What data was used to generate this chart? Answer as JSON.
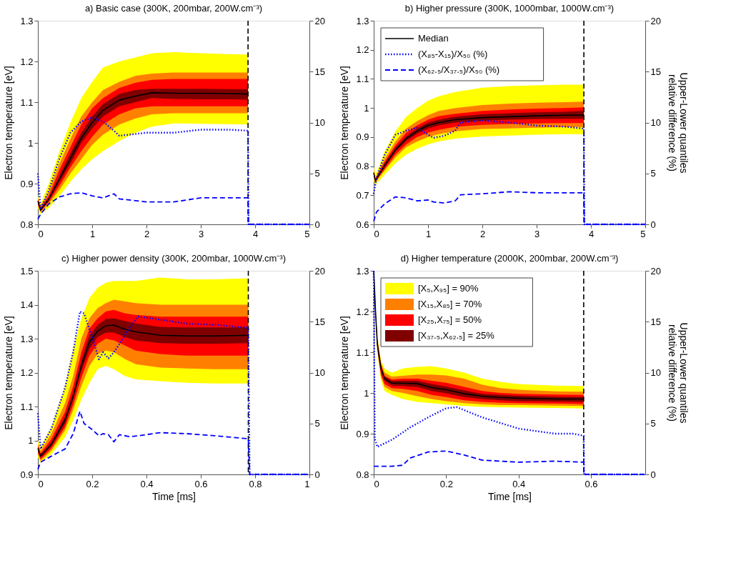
{
  "chart_data": [
    {
      "type": "line",
      "title": "a) Basic case (300K, 200mbar, 200W.cm⁻³)",
      "ylabel": "Electron temperature [eV]",
      "xlim": [
        0,
        5
      ],
      "xticks": [
        0,
        1,
        2,
        3,
        4,
        5
      ],
      "ylim": [
        0.8,
        1.3
      ],
      "yticks": [
        0.8,
        0.9,
        1,
        1.1,
        1.2,
        1.3
      ],
      "y2lim": [
        0,
        20
      ],
      "y2ticks": [
        0,
        5,
        10,
        15,
        20
      ],
      "grid": false,
      "legend": false,
      "marker": "none",
      "x": [
        0,
        0.05,
        0.2,
        0.4,
        0.6,
        0.8,
        1.0,
        1.2,
        1.5,
        1.8,
        2.1,
        2.5,
        3.0,
        3.5,
        3.87
      ],
      "series": [
        {
          "type": "area",
          "color": "#ffff00",
          "values": [
            null,
            null,
            null,
            null,
            null,
            null,
            null,
            null,
            null,
            null,
            null,
            null,
            null,
            null,
            null
          ],
          "lower": [
            0.84,
            0.825,
            0.84,
            0.87,
            0.905,
            0.935,
            0.96,
            0.98,
            1.005,
            1.025,
            1.04,
            1.048,
            1.047,
            1.046,
            1.045
          ],
          "upper": [
            0.87,
            0.85,
            0.9,
            0.98,
            1.05,
            1.11,
            1.15,
            1.185,
            1.2,
            1.21,
            1.22,
            1.223,
            1.22,
            1.218,
            1.217
          ]
        },
        {
          "type": "area",
          "color": "#ff8000",
          "values": [
            null,
            null,
            null,
            null,
            null,
            null,
            null,
            null,
            null,
            null,
            null,
            null,
            null,
            null,
            null
          ],
          "lower": [
            0.845,
            0.83,
            0.85,
            0.885,
            0.925,
            0.96,
            0.995,
            1.02,
            1.045,
            1.06,
            1.07,
            1.073,
            1.073,
            1.073,
            1.073
          ],
          "upper": [
            0.865,
            0.845,
            0.88,
            0.95,
            1.01,
            1.065,
            1.1,
            1.13,
            1.15,
            1.165,
            1.17,
            1.173,
            1.173,
            1.173,
            1.173
          ]
        },
        {
          "type": "area",
          "color": "#ff0000",
          "values": [
            null,
            null,
            null,
            null,
            null,
            null,
            null,
            null,
            null,
            null,
            null,
            null,
            null,
            null,
            null
          ],
          "lower": [
            0.85,
            0.832,
            0.855,
            0.895,
            0.94,
            0.98,
            1.015,
            1.045,
            1.07,
            1.085,
            1.09,
            1.09,
            1.09,
            1.09,
            1.09
          ],
          "upper": [
            0.862,
            0.84,
            0.87,
            0.935,
            0.99,
            1.045,
            1.085,
            1.11,
            1.135,
            1.148,
            1.155,
            1.157,
            1.157,
            1.157,
            1.157
          ]
        },
        {
          "type": "area",
          "color": "#800000",
          "values": [
            null,
            null,
            null,
            null,
            null,
            null,
            null,
            null,
            null,
            null,
            null,
            null,
            null,
            null,
            null
          ],
          "lower": [
            0.855,
            0.833,
            0.858,
            0.905,
            0.95,
            1.0,
            1.035,
            1.065,
            1.09,
            1.1,
            1.11,
            1.108,
            1.107,
            1.107,
            1.106
          ],
          "upper": [
            0.86,
            0.838,
            0.865,
            0.92,
            0.975,
            1.025,
            1.065,
            1.095,
            1.12,
            1.13,
            1.133,
            1.133,
            1.133,
            1.132,
            1.132
          ]
        },
        {
          "type": "line",
          "color": "#000000",
          "line_style": "solid",
          "values": [
            0.857,
            0.835,
            0.862,
            0.912,
            0.962,
            1.012,
            1.05,
            1.08,
            1.105,
            1.115,
            1.123,
            1.122,
            1.122,
            1.121,
            1.12
          ]
        },
        {
          "type": "line",
          "axis": "y2",
          "color": "#0000ff",
          "line_style": "dotted",
          "x": [
            0,
            0.05,
            0.2,
            0.4,
            0.6,
            0.8,
            1.0,
            1.2,
            1.4,
            1.5,
            2.0,
            2.5,
            3.0,
            3.5,
            3.87,
            3.88,
            5
          ],
          "values": [
            5,
            1.5,
            3.3,
            6.5,
            9.0,
            10.1,
            10.5,
            10.1,
            9.2,
            8.7,
            9.0,
            9.0,
            9.3,
            9.3,
            9.2,
            0,
            0
          ]
        },
        {
          "type": "line",
          "axis": "y2",
          "color": "#0000ff",
          "line_style": "dashed",
          "x": [
            0,
            0.05,
            0.2,
            0.4,
            0.6,
            0.8,
            1.0,
            1.2,
            1.4,
            1.5,
            2.0,
            2.5,
            3.0,
            3.5,
            3.87,
            3.88,
            5
          ],
          "values": [
            0.5,
            1.0,
            2.0,
            2.7,
            3.0,
            3.1,
            2.8,
            2.6,
            3.0,
            2.5,
            2.2,
            2.2,
            2.6,
            2.6,
            2.6,
            0,
            0
          ]
        }
      ],
      "ref_lines": [
        {
          "axis": "x",
          "value": 3.87,
          "color": "#000000",
          "line_style": "dashed"
        }
      ]
    },
    {
      "type": "line",
      "title": "b) Higher pressure (300K, 1000mbar, 1000W.cm⁻³)",
      "ylabel": "Electron temperature [eV]",
      "y2label": "Upper-Lower quantiles\nrelative difference (%)",
      "xlim": [
        0,
        5
      ],
      "xticks": [
        0,
        1,
        2,
        3,
        4,
        5
      ],
      "ylim": [
        0.6,
        1.3
      ],
      "yticks": [
        0.6,
        0.7,
        0.8,
        0.9,
        1,
        1.1,
        1.2,
        1.3
      ],
      "y2lim": [
        0,
        20
      ],
      "y2ticks": [
        0,
        5,
        10,
        15,
        20
      ],
      "grid": false,
      "legend": "top left",
      "marker": "none",
      "x": [
        0,
        0.03,
        0.1,
        0.2,
        0.4,
        0.6,
        0.8,
        1.0,
        1.2,
        1.5,
        2.0,
        2.5,
        3.0,
        3.5,
        3.87
      ],
      "series": [
        {
          "type": "area",
          "color": "#ffff00",
          "values": [
            null,
            null,
            null,
            null,
            null,
            null,
            null,
            null,
            null,
            null,
            null,
            null,
            null,
            null,
            null
          ],
          "lower": [
            0.75,
            0.735,
            0.75,
            0.77,
            0.81,
            0.84,
            0.86,
            0.875,
            0.885,
            0.895,
            0.902,
            0.905,
            0.908,
            0.91,
            0.91
          ],
          "upper": [
            0.8,
            0.77,
            0.8,
            0.85,
            0.92,
            0.97,
            1.0,
            1.025,
            1.04,
            1.055,
            1.07,
            1.075,
            1.078,
            1.08,
            1.08
          ]
        },
        {
          "type": "area",
          "color": "#ff8000",
          "values": [
            null,
            null,
            null,
            null,
            null,
            null,
            null,
            null,
            null,
            null,
            null,
            null,
            null,
            null,
            null
          ],
          "lower": [
            0.76,
            0.74,
            0.76,
            0.785,
            0.83,
            0.865,
            0.885,
            0.9,
            0.91,
            0.92,
            0.928,
            0.93,
            0.932,
            0.934,
            0.934
          ],
          "upper": [
            0.79,
            0.76,
            0.785,
            0.825,
            0.885,
            0.93,
            0.955,
            0.975,
            0.99,
            1.0,
            1.01,
            1.015,
            1.018,
            1.02,
            1.022
          ]
        },
        {
          "type": "area",
          "color": "#ff0000",
          "values": [
            null,
            null,
            null,
            null,
            null,
            null,
            null,
            null,
            null,
            null,
            null,
            null,
            null,
            null,
            null
          ],
          "lower": [
            0.765,
            0.745,
            0.765,
            0.79,
            0.84,
            0.875,
            0.9,
            0.915,
            0.925,
            0.935,
            0.942,
            0.945,
            0.947,
            0.948,
            0.948
          ],
          "upper": [
            0.785,
            0.755,
            0.78,
            0.815,
            0.872,
            0.915,
            0.94,
            0.96,
            0.972,
            0.98,
            0.99,
            0.995,
            0.998,
            1.0,
            1.002
          ]
        },
        {
          "type": "area",
          "color": "#800000",
          "values": [
            null,
            null,
            null,
            null,
            null,
            null,
            null,
            null,
            null,
            null,
            null,
            null,
            null,
            null,
            null
          ],
          "lower": [
            0.772,
            0.748,
            0.768,
            0.797,
            0.85,
            0.887,
            0.912,
            0.93,
            0.94,
            0.95,
            0.957,
            0.96,
            0.962,
            0.963,
            0.963
          ],
          "upper": [
            0.782,
            0.752,
            0.775,
            0.808,
            0.863,
            0.903,
            0.93,
            0.95,
            0.96,
            0.97,
            0.978,
            0.982,
            0.985,
            0.987,
            0.99
          ]
        },
        {
          "type": "line",
          "name": "Median",
          "color": "#000000",
          "line_style": "solid",
          "values": [
            0.777,
            0.75,
            0.771,
            0.802,
            0.856,
            0.895,
            0.921,
            0.94,
            0.95,
            0.96,
            0.967,
            0.97,
            0.973,
            0.975,
            0.976
          ]
        },
        {
          "type": "line",
          "axis": "y2",
          "name": "(X₈₅-X₁₅)/X₅₀ (%)",
          "color": "#0000ff",
          "line_style": "dotted",
          "x": [
            0,
            0.05,
            0.2,
            0.4,
            0.6,
            0.8,
            1.0,
            1.1,
            1.3,
            1.5,
            1.6,
            2.0,
            2.5,
            3.0,
            3.5,
            3.87,
            3.88,
            5
          ],
          "values": [
            3,
            4.5,
            6.8,
            8.8,
            9.2,
            9.5,
            8.8,
            8.5,
            8.7,
            9.2,
            10.0,
            10.2,
            10.0,
            9.7,
            9.6,
            9.4,
            0,
            0
          ]
        },
        {
          "type": "line",
          "axis": "y2",
          "name": "(X₆₂.₅/X₃₇.₅)/X₅₀ (%)",
          "color": "#0000ff",
          "line_style": "dashed",
          "x": [
            0,
            0.05,
            0.2,
            0.4,
            0.6,
            0.8,
            1.0,
            1.1,
            1.3,
            1.5,
            1.6,
            2.0,
            2.5,
            3.0,
            3.5,
            3.87,
            3.88,
            5
          ],
          "values": [
            0.3,
            1.2,
            2.0,
            2.7,
            2.6,
            2.3,
            2.4,
            2.2,
            2.1,
            2.3,
            2.9,
            3.0,
            3.2,
            3.1,
            3.1,
            3.1,
            0,
            0
          ]
        }
      ],
      "ref_lines": [
        {
          "axis": "x",
          "value": 3.87,
          "color": "#000000",
          "line_style": "dashed"
        }
      ]
    },
    {
      "type": "line",
      "title": "c) Higher power density (300K, 200mbar, 1000W.cm⁻³)",
      "xlabel": "Time [ms]",
      "ylabel": "Electron temperature [eV]",
      "xlim": [
        0,
        1
      ],
      "xticks": [
        0,
        0.2,
        0.4,
        0.6,
        0.8,
        1
      ],
      "ylim": [
        0.9,
        1.5
      ],
      "yticks": [
        0.9,
        1,
        1.1,
        1.2,
        1.3,
        1.4,
        1.5
      ],
      "y2lim": [
        0,
        20
      ],
      "y2ticks": [
        0,
        5,
        10,
        15,
        20
      ],
      "grid": false,
      "legend": false,
      "marker": "none",
      "x": [
        0,
        0.01,
        0.05,
        0.1,
        0.13,
        0.16,
        0.19,
        0.22,
        0.25,
        0.28,
        0.32,
        0.36,
        0.45,
        0.55,
        0.65,
        0.775
      ],
      "series": [
        {
          "type": "area",
          "color": "#ffff00",
          "values": [
            null,
            null,
            null,
            null,
            null,
            null,
            null,
            null,
            null,
            null,
            null,
            null,
            null,
            null,
            null,
            null
          ],
          "lower": [
            0.95,
            0.935,
            0.96,
            1.01,
            1.06,
            1.12,
            1.17,
            1.21,
            1.22,
            1.21,
            1.19,
            1.18,
            1.175,
            1.17,
            1.168,
            1.168
          ],
          "upper": [
            1.0,
            0.98,
            1.04,
            1.16,
            1.27,
            1.36,
            1.42,
            1.45,
            1.465,
            1.47,
            1.47,
            1.47,
            1.48,
            1.475,
            1.475,
            1.478
          ]
        },
        {
          "type": "area",
          "color": "#ff8000",
          "values": [
            null,
            null,
            null,
            null,
            null,
            null,
            null,
            null,
            null,
            null,
            null,
            null,
            null,
            null,
            null,
            null
          ],
          "lower": [
            0.96,
            0.94,
            0.97,
            1.03,
            1.09,
            1.16,
            1.22,
            1.255,
            1.265,
            1.26,
            1.24,
            1.225,
            1.215,
            1.212,
            1.21,
            1.21
          ],
          "upper": [
            0.99,
            0.97,
            1.02,
            1.11,
            1.19,
            1.3,
            1.36,
            1.39,
            1.405,
            1.415,
            1.41,
            1.405,
            1.4,
            1.4,
            1.4,
            1.4
          ]
        },
        {
          "type": "area",
          "color": "#ff0000",
          "values": [
            null,
            null,
            null,
            null,
            null,
            null,
            null,
            null,
            null,
            null,
            null,
            null,
            null,
            null,
            null,
            null
          ],
          "lower": [
            0.965,
            0.945,
            0.977,
            1.04,
            1.105,
            1.185,
            1.25,
            1.285,
            1.3,
            1.295,
            1.28,
            1.265,
            1.255,
            1.25,
            1.25,
            1.25
          ],
          "upper": [
            0.985,
            0.962,
            1.005,
            1.085,
            1.16,
            1.26,
            1.33,
            1.36,
            1.38,
            1.385,
            1.375,
            1.37,
            1.365,
            1.365,
            1.365,
            1.365
          ]
        },
        {
          "type": "area",
          "color": "#800000",
          "values": [
            null,
            null,
            null,
            null,
            null,
            null,
            null,
            null,
            null,
            null,
            null,
            null,
            null,
            null,
            null,
            null
          ],
          "lower": [
            0.972,
            0.95,
            0.983,
            1.05,
            1.12,
            1.205,
            1.27,
            1.305,
            1.318,
            1.318,
            1.305,
            1.295,
            1.287,
            1.285,
            1.285,
            1.287
          ],
          "upper": [
            0.982,
            0.958,
            0.995,
            1.07,
            1.14,
            1.235,
            1.31,
            1.34,
            1.358,
            1.36,
            1.352,
            1.345,
            1.335,
            1.333,
            1.333,
            1.333
          ]
        },
        {
          "type": "line",
          "color": "#000000",
          "line_style": "solid",
          "values": [
            0.977,
            0.954,
            0.989,
            1.06,
            1.13,
            1.22,
            1.29,
            1.322,
            1.338,
            1.34,
            1.328,
            1.32,
            1.31,
            1.308,
            1.308,
            1.31
          ]
        },
        {
          "type": "line",
          "axis": "y2",
          "color": "#0000ff",
          "line_style": "dotted",
          "x": [
            0,
            0.01,
            0.05,
            0.1,
            0.13,
            0.155,
            0.17,
            0.2,
            0.225,
            0.24,
            0.26,
            0.28,
            0.3,
            0.34,
            0.37,
            0.45,
            0.55,
            0.65,
            0.775,
            0.78,
            1
          ],
          "values": [
            6,
            2.5,
            4.5,
            8.5,
            12,
            16,
            15.8,
            13.5,
            11.3,
            12.0,
            11.4,
            12,
            12.8,
            14.5,
            15.5,
            15.2,
            14.8,
            14.7,
            14.4,
            0,
            0
          ]
        },
        {
          "type": "line",
          "axis": "y2",
          "color": "#0000ff",
          "line_style": "dashed",
          "x": [
            0,
            0.01,
            0.05,
            0.1,
            0.13,
            0.155,
            0.17,
            0.2,
            0.225,
            0.24,
            0.26,
            0.28,
            0.3,
            0.34,
            0.37,
            0.45,
            0.55,
            0.65,
            0.775,
            0.78,
            1
          ],
          "values": [
            0.5,
            1.2,
            1.8,
            2.5,
            4.0,
            6.2,
            5.0,
            4.4,
            3.8,
            4.0,
            3.9,
            3.2,
            3.9,
            3.7,
            3.8,
            4.1,
            4.0,
            3.8,
            3.5,
            0,
            0
          ]
        }
      ],
      "ref_lines": [
        {
          "axis": "x",
          "value": 0.775,
          "color": "#000000",
          "line_style": "dashed"
        }
      ]
    },
    {
      "type": "line",
      "title": "d) Higher temperature (2000K, 200mbar, 200W.cm⁻³)",
      "xlabel": "Time [ms]",
      "ylabel": "Electron temperature [eV]",
      "y2label": "Upper-Lower quantiles\nrelative difference (%)",
      "xlim": [
        0,
        0.75
      ],
      "xticks": [
        0,
        0.2,
        0.4,
        0.6
      ],
      "ylim": [
        0.8,
        1.3
      ],
      "yticks": [
        0.8,
        0.9,
        1,
        1.1,
        1.2,
        1.3
      ],
      "y2lim": [
        0,
        20
      ],
      "y2ticks": [
        0,
        5,
        10,
        15,
        20
      ],
      "grid": false,
      "legend": "top left",
      "marker": "none",
      "x": [
        0,
        0.005,
        0.01,
        0.02,
        0.03,
        0.05,
        0.08,
        0.12,
        0.16,
        0.2,
        0.25,
        0.3,
        0.35,
        0.4,
        0.5,
        0.58
      ],
      "series": [
        {
          "type": "area",
          "name": "[X₅,X₉₅] = 90%",
          "color": "#ffff00",
          "values": [
            null,
            null,
            null,
            null,
            null,
            null,
            null,
            null,
            null,
            null,
            null,
            null,
            null,
            null,
            null,
            null
          ],
          "lower": [
            1.3,
            1.19,
            1.1,
            1.03,
            1.005,
            0.995,
            0.985,
            0.978,
            0.975,
            0.972,
            0.968,
            0.966,
            0.965,
            0.964,
            0.963,
            0.962
          ],
          "upper": [
            1.3,
            1.21,
            1.14,
            1.08,
            1.06,
            1.05,
            1.06,
            1.064,
            1.066,
            1.06,
            1.05,
            1.035,
            1.027,
            1.022,
            1.018,
            1.017
          ]
        },
        {
          "type": "area",
          "name": "[X₁₅,X₈₅] = 70%",
          "color": "#ff8000",
          "values": [
            null,
            null,
            null,
            null,
            null,
            null,
            null,
            null,
            null,
            null,
            null,
            null,
            null,
            null,
            null,
            null
          ],
          "lower": [
            1.3,
            1.193,
            1.105,
            1.04,
            1.015,
            1.005,
            1.0,
            0.992,
            0.985,
            0.98,
            0.975,
            0.972,
            0.97,
            0.97,
            0.969,
            0.968
          ],
          "upper": [
            1.3,
            1.207,
            1.135,
            1.075,
            1.05,
            1.04,
            1.042,
            1.045,
            1.045,
            1.043,
            1.035,
            1.02,
            1.012,
            1.008,
            1.004,
            1.003
          ]
        },
        {
          "type": "area",
          "name": "[X₂₅,X₇₅] = 50%",
          "color": "#ff0000",
          "values": [
            null,
            null,
            null,
            null,
            null,
            null,
            null,
            null,
            null,
            null,
            null,
            null,
            null,
            null,
            null,
            null
          ],
          "lower": [
            1.3,
            1.195,
            1.11,
            1.045,
            1.022,
            1.012,
            1.01,
            1.005,
            0.995,
            0.99,
            0.982,
            0.978,
            0.976,
            0.975,
            0.974,
            0.973
          ],
          "upper": [
            1.3,
            1.205,
            1.13,
            1.07,
            1.042,
            1.033,
            1.035,
            1.035,
            1.03,
            1.025,
            1.015,
            1.005,
            1.0,
            0.998,
            0.996,
            0.995
          ]
        },
        {
          "type": "area",
          "name": "[X₃₇.₅,X₆₂.₅] = 25%",
          "color": "#800000",
          "values": [
            null,
            null,
            null,
            null,
            null,
            null,
            null,
            null,
            null,
            null,
            null,
            null,
            null,
            null,
            null,
            null
          ],
          "lower": [
            1.3,
            1.197,
            1.115,
            1.055,
            1.03,
            1.018,
            1.017,
            1.015,
            1.005,
            0.999,
            0.99,
            0.985,
            0.982,
            0.98,
            0.979,
            0.978
          ],
          "upper": [
            1.3,
            1.203,
            1.125,
            1.065,
            1.04,
            1.03,
            1.03,
            1.03,
            1.022,
            1.016,
            1.006,
            0.998,
            0.995,
            0.993,
            0.991,
            0.99
          ]
        },
        {
          "type": "line",
          "color": "#000000",
          "line_style": "solid",
          "values": [
            1.3,
            1.2,
            1.12,
            1.06,
            1.035,
            1.024,
            1.024,
            1.023,
            1.013,
            1.008,
            0.998,
            0.992,
            0.989,
            0.987,
            0.985,
            0.985
          ]
        },
        {
          "type": "line",
          "axis": "y2",
          "color": "#0000ff",
          "line_style": "dotted",
          "x": [
            0,
            0.003,
            0.01,
            0.05,
            0.1,
            0.15,
            0.2,
            0.23,
            0.3,
            0.4,
            0.5,
            0.55,
            0.58,
            0.581,
            0.75
          ],
          "values": [
            20,
            3.5,
            2.7,
            3.4,
            4.6,
            5.6,
            6.5,
            6.6,
            5.6,
            4.5,
            4.0,
            4.0,
            3.8,
            0,
            0
          ]
        },
        {
          "type": "line",
          "axis": "y2",
          "color": "#0000ff",
          "line_style": "dashed",
          "x": [
            0,
            0.01,
            0.05,
            0.08,
            0.1,
            0.15,
            0.2,
            0.25,
            0.3,
            0.4,
            0.5,
            0.58,
            0.581,
            0.75
          ],
          "values": [
            0.8,
            0.8,
            0.8,
            0.9,
            1.6,
            2.2,
            2.3,
            1.9,
            1.4,
            1.2,
            1.3,
            1.2,
            0,
            0
          ]
        }
      ],
      "ref_lines": [
        {
          "axis": "x",
          "value": 0.58,
          "color": "#000000",
          "line_style": "dashed"
        }
      ]
    }
  ]
}
